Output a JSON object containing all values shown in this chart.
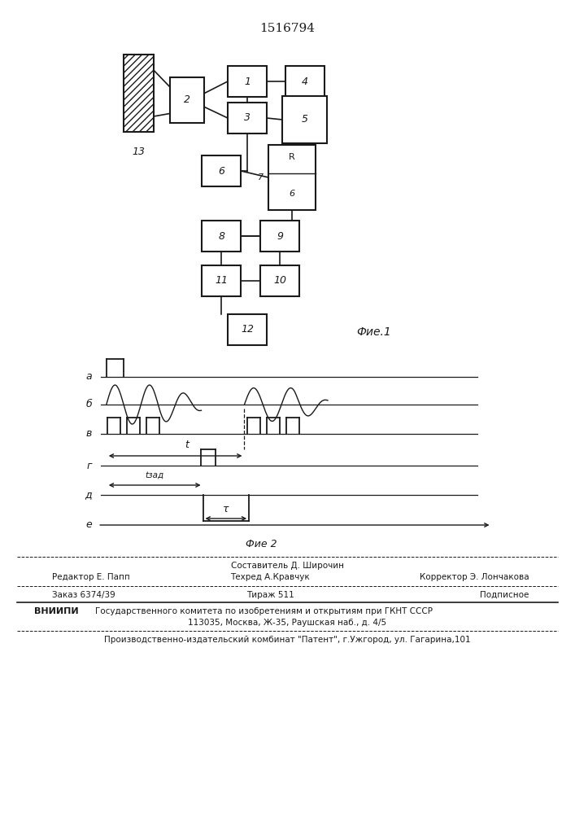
{
  "title": "1516794",
  "fig1_label": "Фие.1",
  "fig2_label": "Фие 2",
  "background_color": "#ffffff",
  "line_color": "#1a1a1a",
  "row_labels": [
    "а",
    "б",
    "в",
    "г",
    "д",
    "е"
  ],
  "footer_col1": [
    "Редактор Е. Папп",
    "Заказ 6374/39"
  ],
  "footer_col2": [
    "Техред А.Кравчук",
    "Тираж 511"
  ],
  "footer_col3": [
    "Корректор Э. Лончакова",
    "Подписное"
  ],
  "footer_sestavitel": "Составитель Д. Широчин",
  "footer_vniipи": "ВНИИПИ",
  "footer_vniipи_text": "Государственного комитета по изобретениям и открытиям при ГКНТ СССР",
  "footer_address": "113035, Москва, Ж-35, Раушская наб., д. 4/5",
  "footer_patent": "Производственно-издательский комбинат \"Патент\", г.Ужгород, ул. Гагарина,101"
}
